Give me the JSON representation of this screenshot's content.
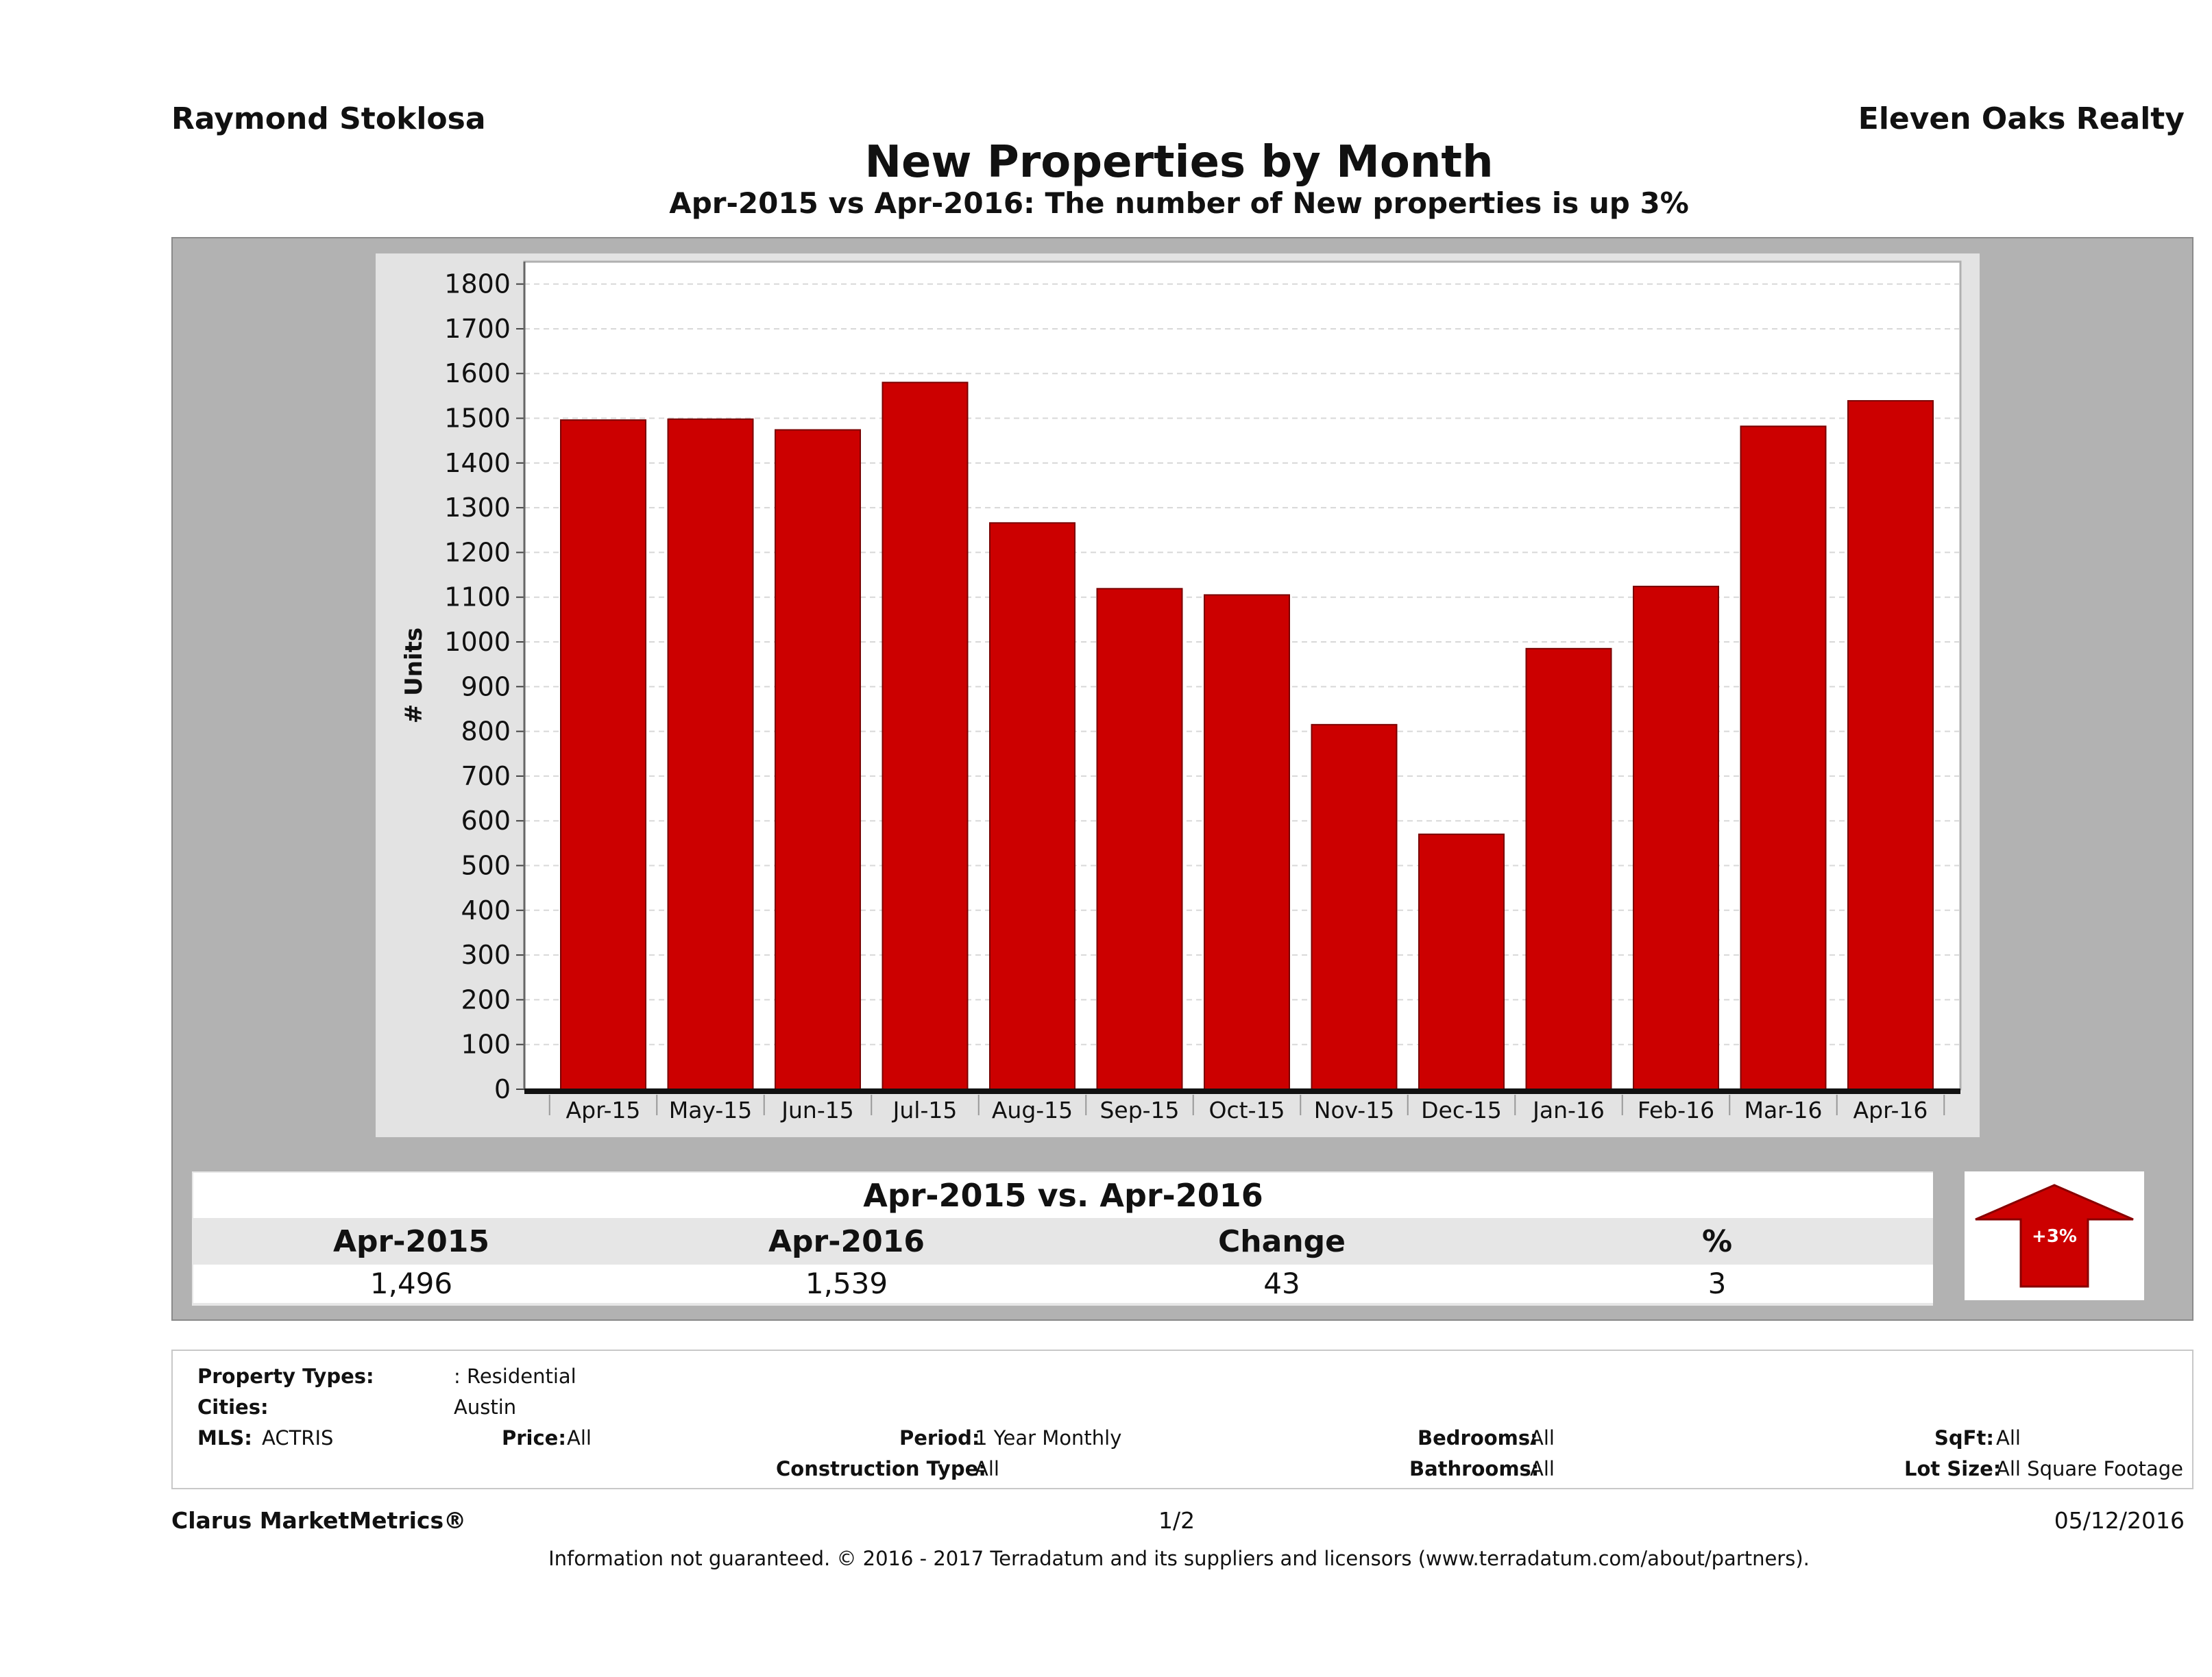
{
  "header": {
    "agent": "Raymond Stoklosa",
    "company": "Eleven Oaks Realty"
  },
  "chart_data": {
    "type": "bar",
    "title": "New Properties by Month",
    "subtitle": "Apr-2015 vs Apr-2016: The number of New  properties is up 3%",
    "ylabel": "# Units",
    "xlabel": "",
    "ylim": [
      0,
      1850
    ],
    "yticks": [
      0,
      100,
      200,
      300,
      400,
      500,
      600,
      700,
      800,
      900,
      1000,
      1100,
      1200,
      1300,
      1400,
      1500,
      1600,
      1700,
      1800
    ],
    "categories": [
      "Apr-15",
      "May-15",
      "Jun-15",
      "Jul-15",
      "Aug-15",
      "Sep-15",
      "Oct-15",
      "Nov-15",
      "Dec-15",
      "Jan-16",
      "Feb-16",
      "Mar-16",
      "Apr-16"
    ],
    "values": [
      1496,
      1498,
      1474,
      1580,
      1266,
      1119,
      1105,
      815,
      570,
      985,
      1124,
      1482,
      1539
    ],
    "bar_color": "#cc0000",
    "grid": true,
    "legend": "none"
  },
  "summary": {
    "title": "Apr-2015 vs. Apr-2016",
    "headers": [
      "Apr-2015",
      "Apr-2016",
      "Change",
      "%"
    ],
    "values": [
      "1,496",
      "1,539",
      "43",
      "3"
    ],
    "badge": "+3%"
  },
  "filters": {
    "property_types_label": "Property Types:",
    "property_types_value": ": Residential",
    "cities_label": "Cities:",
    "cities_value": "Austin",
    "mls_label": "MLS:",
    "mls_value": "ACTRIS",
    "price_label": "Price:",
    "price_value": "All",
    "period_label": "Period:",
    "period_value": "1 Year Monthly",
    "construction_label": "Construction Type:",
    "construction_value": "All",
    "bedrooms_label": "Bedrooms:",
    "bedrooms_value": "All",
    "bathrooms_label": "Bathrooms:",
    "bathrooms_value": "All",
    "sqft_label": "SqFt:",
    "sqft_value": "All",
    "lot_label": "Lot Size:",
    "lot_value": "All Square Footage"
  },
  "footer": {
    "brand": "Clarus MarketMetrics®",
    "page": "1/2",
    "date": "05/12/2016",
    "disclaimer": "Information not guaranteed. © 2016 - 2017 Terradatum and its suppliers and licensors (www.terradatum.com/about/partners)."
  }
}
